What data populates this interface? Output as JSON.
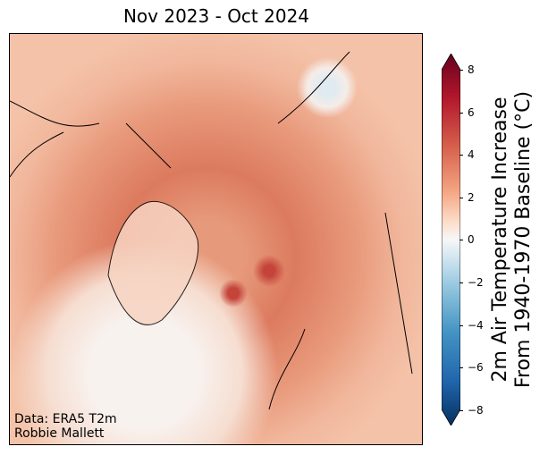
{
  "title": "Nov 2023 - Oct 2024",
  "credit": {
    "line1": "Data: ERA5 T2m",
    "line2": "Robbie Mallett"
  },
  "colorbar": {
    "label_line1": "2m Air Temperature Increase",
    "label_line2": "From 1940-1970 Baseline (°C)",
    "ticks": [
      "8",
      "6",
      "4",
      "2",
      "0",
      "−2",
      "−4",
      "−6",
      "−8"
    ],
    "min": -8,
    "max": 8,
    "colormap": "RdBu_r",
    "extend": "both"
  },
  "colors": {
    "max": "#67001f",
    "mid": "#f7f7f7",
    "min": "#053061"
  }
}
